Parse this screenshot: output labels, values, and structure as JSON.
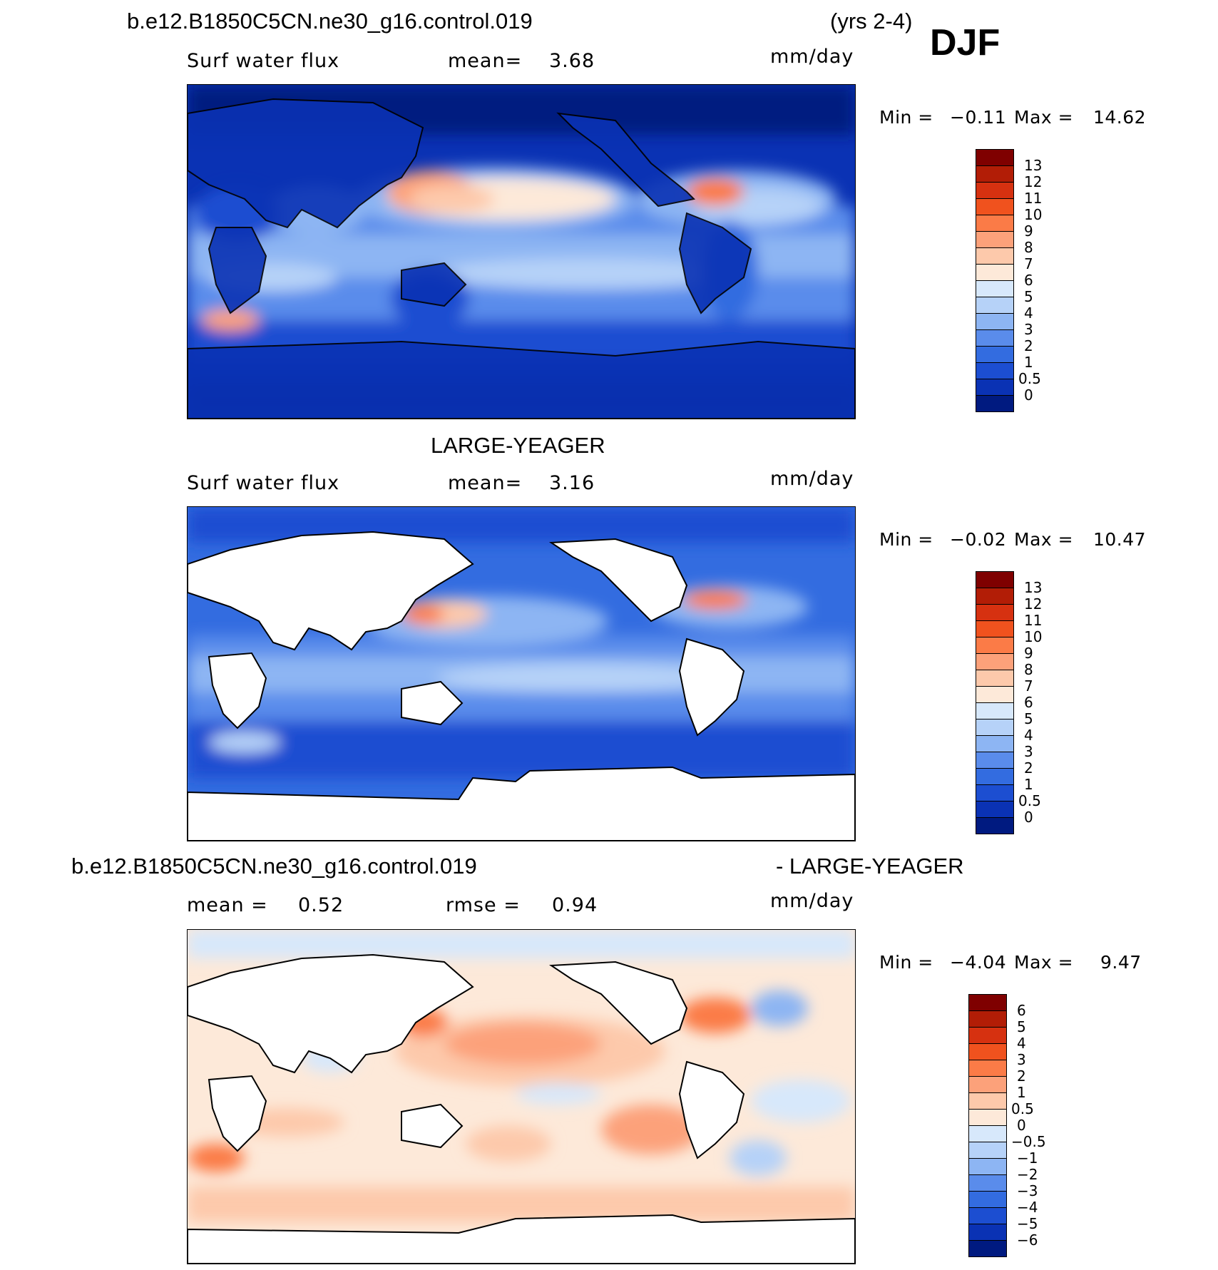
{
  "figure": {
    "case_name": "b.e12.B1850C5CN.ne30_g16.control.019",
    "years": "(yrs 2-4)",
    "season": "DJF"
  },
  "panels": [
    {
      "title": "",
      "variable": "Surf water flux",
      "mean_label": "mean=",
      "mean_value": "3.68",
      "units": "mm/day",
      "min_label": "Min =",
      "min_value": "−0.11",
      "max_label": "Max =",
      "max_value": "14.62",
      "colorbar": [
        "13",
        "12",
        "11",
        "10",
        "9",
        "8",
        "7",
        "6",
        "5",
        "4",
        "3",
        "2",
        "1",
        "0.5",
        "0"
      ],
      "colors": [
        "#7f0000",
        "#b21d06",
        "#d63110",
        "#f0521e",
        "#fb7b47",
        "#fca17a",
        "#fdc9ab",
        "#fde9d9",
        "#d7e8fb",
        "#b6d2f8",
        "#8db5f3",
        "#5a8ceb",
        "#336ce0",
        "#1c4ed1",
        "#0a32b4",
        "#001a80"
      ]
    },
    {
      "title": "LARGE-YEAGER",
      "variable": "Surf water flux",
      "mean_label": "mean=",
      "mean_value": "3.16",
      "units": "mm/day",
      "min_label": "Min =",
      "min_value": "−0.02",
      "max_label": "Max =",
      "max_value": "10.47",
      "colorbar": [
        "13",
        "12",
        "11",
        "10",
        "9",
        "8",
        "7",
        "6",
        "5",
        "4",
        "3",
        "2",
        "1",
        "0.5",
        "0"
      ],
      "colors": [
        "#7f0000",
        "#b21d06",
        "#d63110",
        "#f0521e",
        "#fb7b47",
        "#fca17a",
        "#fdc9ab",
        "#fde9d9",
        "#d7e8fb",
        "#b6d2f8",
        "#8db5f3",
        "#5a8ceb",
        "#336ce0",
        "#1c4ed1",
        "#0a32b4",
        "#001a80"
      ]
    },
    {
      "title_left": "b.e12.B1850C5CN.ne30_g16.control.019",
      "title_right": "- LARGE-YEAGER",
      "mean_label": "mean =",
      "mean_value": "0.52",
      "rmse_label": "rmse =",
      "rmse_value": "0.94",
      "units": "mm/day",
      "min_label": "Min =",
      "min_value": "−4.04",
      "max_label": "Max =",
      "max_value": "9.47",
      "colorbar": [
        "6",
        "5",
        "4",
        "3",
        "2",
        "1",
        "0.5",
        "0",
        "−0.5",
        "−1",
        "−2",
        "−3",
        "−4",
        "−5",
        "−6"
      ],
      "colors": [
        "#7f0000",
        "#b21d06",
        "#d63110",
        "#f0521e",
        "#fb7b47",
        "#fca17a",
        "#fdc9ab",
        "#fde9d9",
        "#d7e8fb",
        "#b6d2f8",
        "#8db5f3",
        "#5a8ceb",
        "#336ce0",
        "#1c4ed1",
        "#0a32b4",
        "#001a80"
      ]
    }
  ]
}
